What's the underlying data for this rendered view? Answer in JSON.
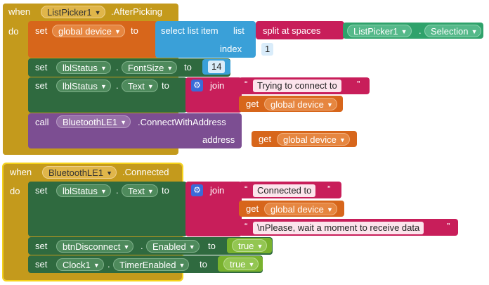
{
  "event1": {
    "when": "when",
    "component": "ListPicker1",
    "event": ".AfterPicking",
    "do": "do",
    "set1": {
      "set": "set",
      "var": "global device",
      "to": "to",
      "select": "select list item",
      "list": "list",
      "split": "split at spaces",
      "comp": "ListPicker1",
      "dot": ".",
      "prop": "Selection",
      "index": "index",
      "index_val": "1"
    },
    "set2": {
      "set": "set",
      "comp": "lblStatus",
      "dot": ".",
      "prop": "FontSize",
      "to": "to",
      "val": "14"
    },
    "set3": {
      "set": "set",
      "comp": "lblStatus",
      "dot": ".",
      "prop": "Text",
      "to": "to",
      "join": "join",
      "text": "Trying to connect to",
      "get": "get",
      "var": "global device"
    },
    "call": {
      "call": "call",
      "comp": "BluetoothLE1",
      "method": ".ConnectWithAddress",
      "address": "address",
      "get": "get",
      "var": "global device"
    }
  },
  "event2": {
    "when": "when",
    "component": "BluetoothLE1",
    "event": ".Connected",
    "do": "do",
    "set1": {
      "set": "set",
      "comp": "lblStatus",
      "dot": ".",
      "prop": "Text",
      "to": "to",
      "join": "join",
      "text1": "Connected to",
      "get": "get",
      "var": "global device",
      "text2": "\\nPlease, wait a moment to receive data"
    },
    "set2": {
      "set": "set",
      "comp": "btnDisconnect",
      "dot": ".",
      "prop": "Enabled",
      "to": "to",
      "val": "true"
    },
    "set3": {
      "set": "set",
      "comp": "Clock1",
      "dot": ".",
      "prop": "TimerEnabled",
      "to": "to",
      "val": "true"
    }
  },
  "icons": {
    "dropdown": "chevron-down-icon",
    "mutator": "gear-icon",
    "quote_open": "“",
    "quote_close": "”"
  }
}
